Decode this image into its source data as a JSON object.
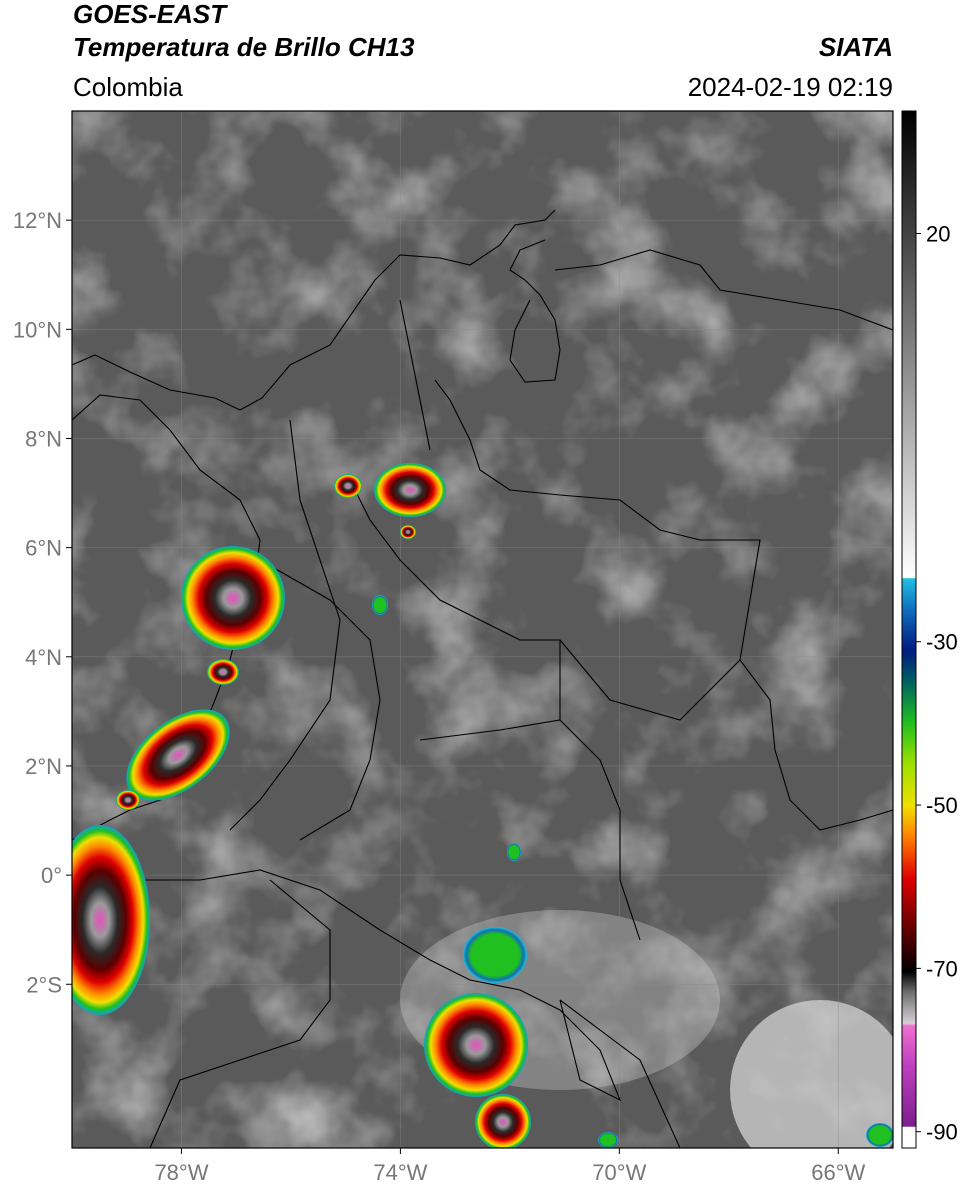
{
  "header": {
    "satellite": "GOES-EAST",
    "product": "Temperatura de Brillo CH13",
    "agency": "SIATA",
    "region": "Colombia",
    "timestamp": "2024-02-19 02:19"
  },
  "map": {
    "lon_range": [
      -80,
      -65
    ],
    "lat_range": [
      -5,
      14
    ],
    "lat_ticks": [
      {
        "value": 12,
        "label": "12°N"
      },
      {
        "value": 10,
        "label": "10°N"
      },
      {
        "value": 8,
        "label": "8°N"
      },
      {
        "value": 6,
        "label": "6°N"
      },
      {
        "value": 4,
        "label": "4°N"
      },
      {
        "value": 2,
        "label": "2°N"
      },
      {
        "value": 0,
        "label": "0°"
      },
      {
        "value": -2,
        "label": "2°S"
      }
    ],
    "lon_ticks": [
      {
        "value": -78,
        "label": "78°W"
      },
      {
        "value": -74,
        "label": "74°W"
      },
      {
        "value": -70,
        "label": "70°W"
      },
      {
        "value": -66,
        "label": "66°W"
      }
    ]
  },
  "colorbar": {
    "range": [
      -92,
      35
    ],
    "ticks": [
      {
        "value": 20,
        "label": "20"
      },
      {
        "value": -30,
        "label": "-30"
      },
      {
        "value": -50,
        "label": "-50"
      },
      {
        "value": -70,
        "label": "-70"
      },
      {
        "value": -90,
        "label": "-90"
      }
    ]
  }
}
